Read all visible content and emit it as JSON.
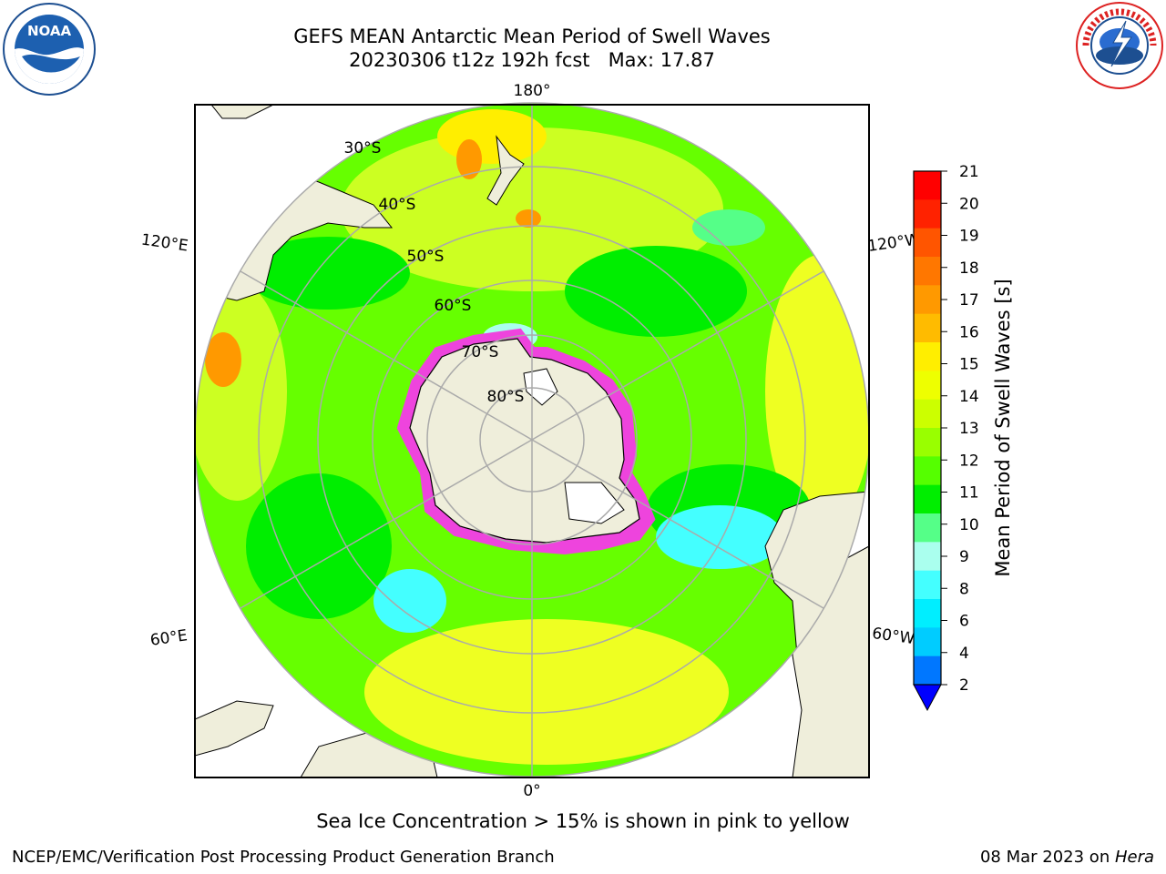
{
  "header": {
    "title_line1": "GEFS MEAN Antarctic Mean Period of Swell Waves",
    "title_line2": "20230306 t12z 192h fcst   Max: 17.87"
  },
  "logos": {
    "left": {
      "text": "NOAA",
      "ring_text": "NATIONAL OCEANIC AND ATMOSPHERIC ADMINISTRATION · U.S. DEPARTMENT OF COMMERCE"
    },
    "right": {
      "ring_text": "NATIONAL WEATHER SERVICE"
    }
  },
  "map": {
    "projection": "south-polar-stereographic",
    "lon_labels": {
      "top": "180°",
      "bottom": "0°",
      "left_upper": "120°E",
      "left_lower": "60°E",
      "right_upper": "120°W",
      "right_lower": "60°W"
    },
    "lat_labels": [
      "30°S",
      "40°S",
      "50°S",
      "60°S",
      "70°S",
      "80°S"
    ],
    "colors": {
      "land": "#efeedb",
      "ice_edge": "#e040e0",
      "graticule": "#aaaaaa",
      "dominant_field": "#66ff00"
    }
  },
  "colorbar": {
    "label": "Mean Period of Swell Waves [s]",
    "ticks": [
      "21",
      "20",
      "19",
      "18",
      "17",
      "16",
      "15",
      "14",
      "13",
      "12",
      "11",
      "10",
      "9",
      "8",
      "6",
      "4",
      "2"
    ],
    "colors_top_to_bottom": [
      "#ff0000",
      "#ff2200",
      "#ff5500",
      "#ff7700",
      "#ff9900",
      "#ffbb00",
      "#ffee00",
      "#eeff00",
      "#ccff00",
      "#99ff00",
      "#55ff00",
      "#00ee00",
      "#55ff88",
      "#aaffee",
      "#44ffff",
      "#00eeff",
      "#00ccff",
      "#0077ff"
    ],
    "extend_color": "#0000ff"
  },
  "note": "Sea Ice Concentration > 15% is shown in pink to yellow",
  "footer": {
    "credit": "NCEP/EMC/Verification Post Processing Product Generation Branch",
    "date_prefix": "08 Mar 2023 on ",
    "machine": "Hera"
  }
}
